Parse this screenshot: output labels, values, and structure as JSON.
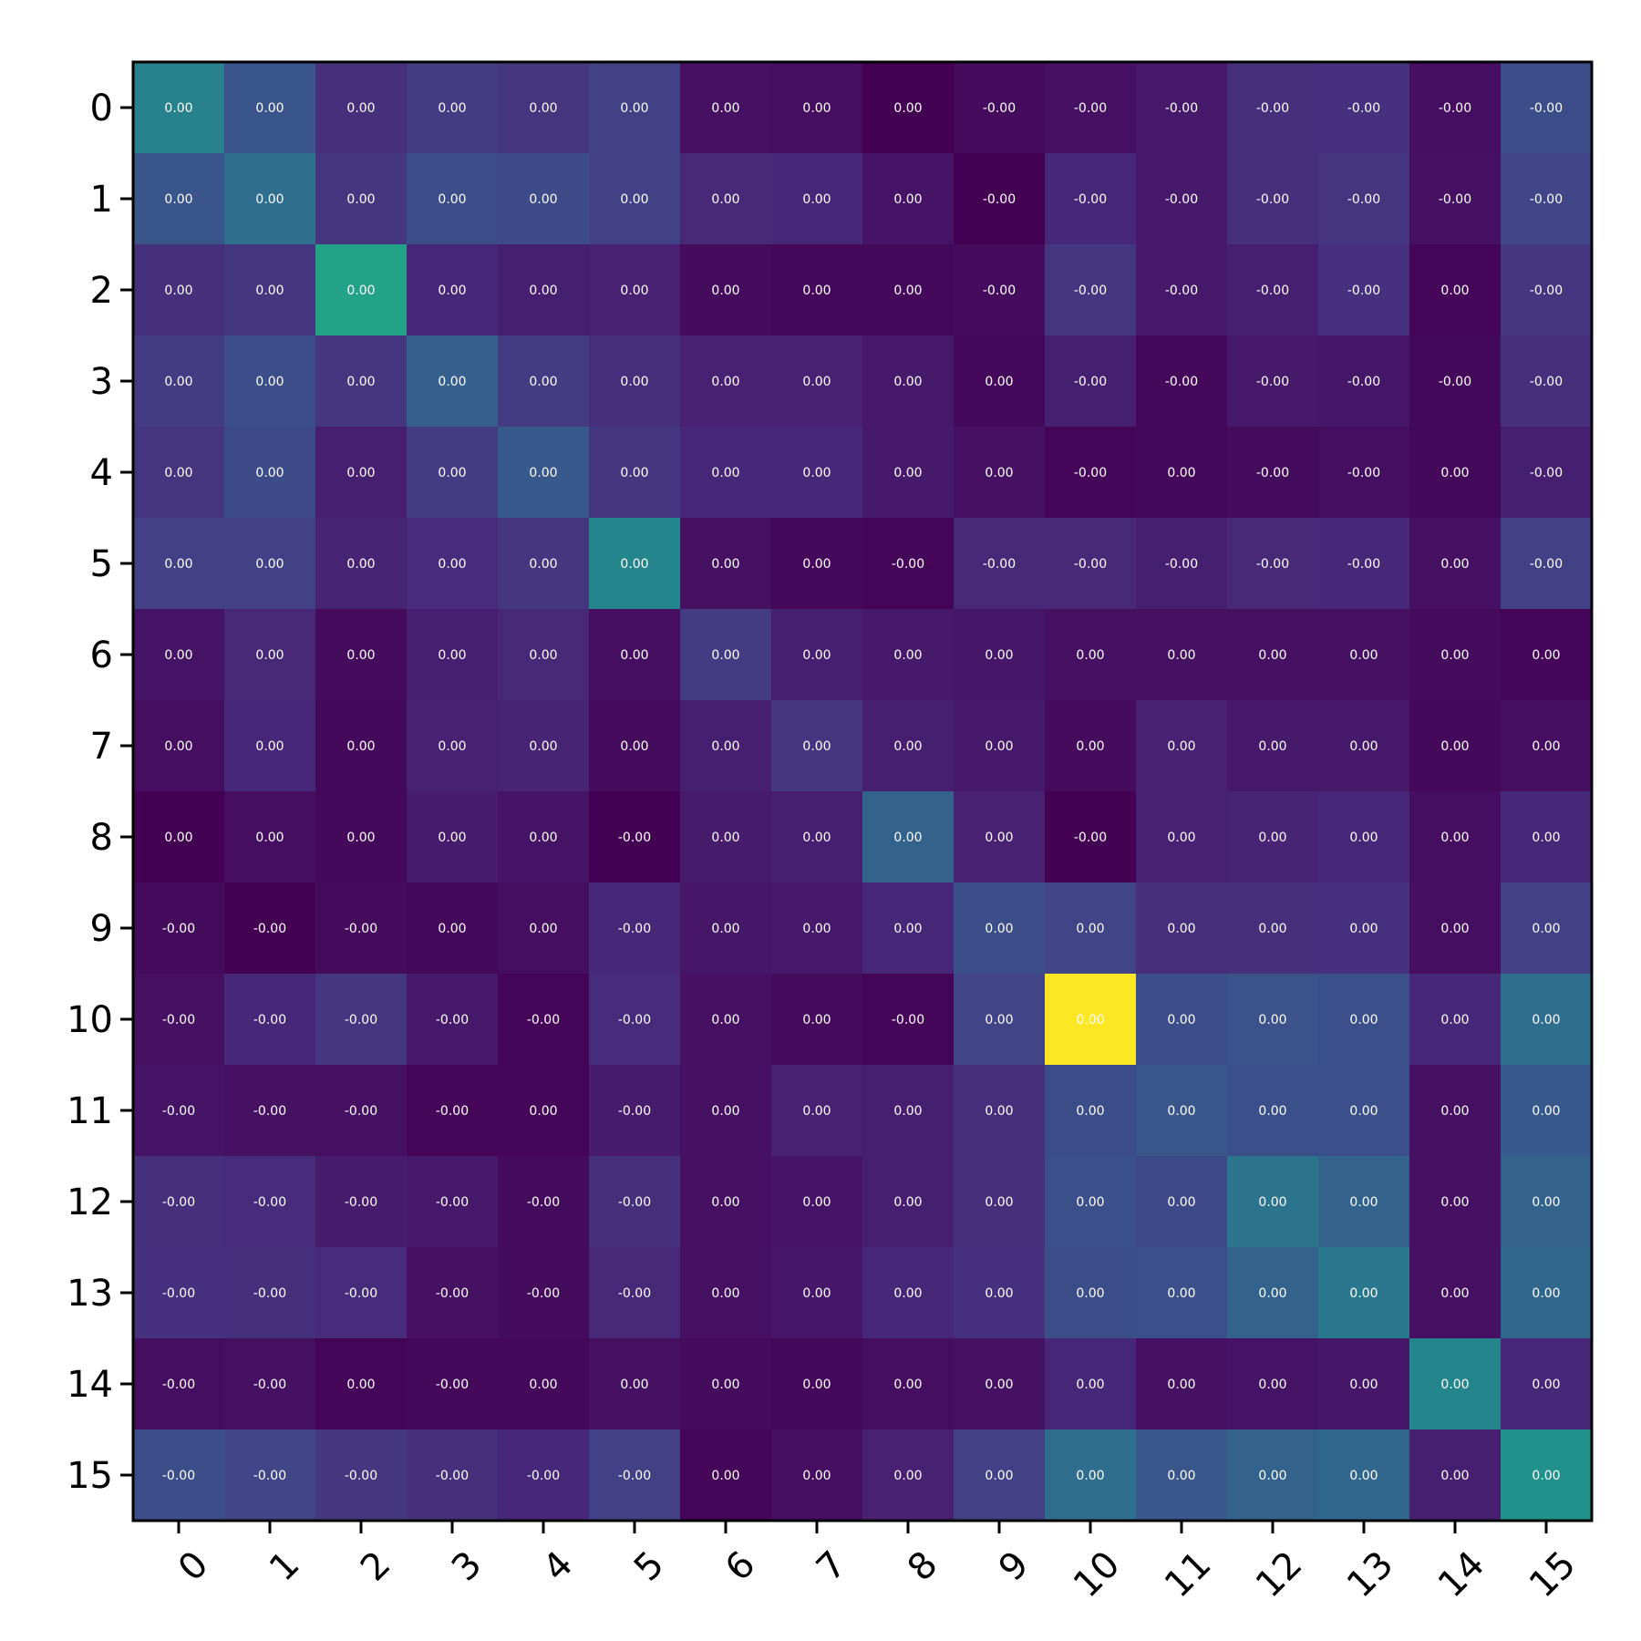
{
  "chart_data": {
    "type": "heatmap",
    "title": "",
    "xlabel": "",
    "ylabel": "",
    "colormap": "viridis",
    "x_categories": [
      "0",
      "1",
      "2",
      "3",
      "4",
      "5",
      "6",
      "7",
      "8",
      "9",
      "10",
      "11",
      "12",
      "13",
      "14",
      "15"
    ],
    "y_categories": [
      "0",
      "1",
      "2",
      "3",
      "4",
      "5",
      "6",
      "7",
      "8",
      "9",
      "10",
      "11",
      "12",
      "13",
      "14",
      "15"
    ],
    "intensity": [
      [
        0.55,
        0.33,
        0.17,
        0.22,
        0.19,
        0.24,
        0.06,
        0.05,
        0.0,
        0.04,
        0.06,
        0.09,
        0.17,
        0.18,
        0.05,
        0.3
      ],
      [
        0.33,
        0.45,
        0.2,
        0.3,
        0.29,
        0.24,
        0.15,
        0.14,
        0.07,
        0.0,
        0.14,
        0.09,
        0.17,
        0.19,
        0.06,
        0.26
      ],
      [
        0.17,
        0.2,
        0.72,
        0.14,
        0.11,
        0.12,
        0.04,
        0.03,
        0.03,
        0.04,
        0.2,
        0.09,
        0.11,
        0.18,
        0.02,
        0.2
      ],
      [
        0.22,
        0.3,
        0.2,
        0.38,
        0.22,
        0.17,
        0.12,
        0.12,
        0.09,
        0.03,
        0.11,
        0.03,
        0.09,
        0.08,
        0.03,
        0.17
      ],
      [
        0.19,
        0.29,
        0.11,
        0.22,
        0.35,
        0.2,
        0.14,
        0.14,
        0.09,
        0.06,
        0.01,
        0.03,
        0.04,
        0.05,
        0.03,
        0.11
      ],
      [
        0.24,
        0.24,
        0.13,
        0.16,
        0.2,
        0.57,
        0.06,
        0.03,
        0.01,
        0.15,
        0.15,
        0.11,
        0.15,
        0.14,
        0.06,
        0.24
      ],
      [
        0.07,
        0.15,
        0.04,
        0.11,
        0.15,
        0.05,
        0.22,
        0.11,
        0.09,
        0.08,
        0.06,
        0.06,
        0.06,
        0.06,
        0.04,
        0.02
      ],
      [
        0.05,
        0.14,
        0.03,
        0.12,
        0.13,
        0.04,
        0.11,
        0.2,
        0.11,
        0.09,
        0.04,
        0.12,
        0.09,
        0.09,
        0.03,
        0.05
      ],
      [
        0.0,
        0.05,
        0.03,
        0.1,
        0.07,
        0.0,
        0.1,
        0.11,
        0.4,
        0.12,
        0.0,
        0.12,
        0.13,
        0.14,
        0.05,
        0.14
      ],
      [
        0.04,
        0.0,
        0.04,
        0.03,
        0.05,
        0.14,
        0.08,
        0.09,
        0.14,
        0.3,
        0.25,
        0.17,
        0.17,
        0.18,
        0.05,
        0.24
      ],
      [
        0.06,
        0.14,
        0.2,
        0.09,
        0.01,
        0.16,
        0.06,
        0.04,
        0.01,
        0.25,
        1.0,
        0.3,
        0.32,
        0.31,
        0.14,
        0.45
      ],
      [
        0.07,
        0.06,
        0.06,
        0.02,
        0.02,
        0.1,
        0.06,
        0.12,
        0.11,
        0.17,
        0.3,
        0.34,
        0.31,
        0.31,
        0.06,
        0.35
      ],
      [
        0.17,
        0.16,
        0.1,
        0.09,
        0.04,
        0.17,
        0.06,
        0.07,
        0.11,
        0.17,
        0.31,
        0.28,
        0.48,
        0.4,
        0.06,
        0.4
      ],
      [
        0.18,
        0.17,
        0.16,
        0.06,
        0.04,
        0.15,
        0.06,
        0.08,
        0.14,
        0.18,
        0.3,
        0.31,
        0.4,
        0.5,
        0.06,
        0.42
      ],
      [
        0.05,
        0.06,
        0.01,
        0.03,
        0.03,
        0.06,
        0.04,
        0.03,
        0.05,
        0.06,
        0.14,
        0.06,
        0.07,
        0.08,
        0.57,
        0.14
      ],
      [
        0.3,
        0.26,
        0.2,
        0.17,
        0.14,
        0.24,
        0.01,
        0.05,
        0.12,
        0.24,
        0.45,
        0.34,
        0.4,
        0.42,
        0.11,
        0.63
      ]
    ],
    "labels": [
      [
        "0.00",
        "0.00",
        "0.00",
        "0.00",
        "0.00",
        "0.00",
        "0.00",
        "0.00",
        "0.00",
        "-0.00",
        "-0.00",
        "-0.00",
        "-0.00",
        "-0.00",
        "-0.00",
        "-0.00"
      ],
      [
        "0.00",
        "0.00",
        "0.00",
        "0.00",
        "0.00",
        "0.00",
        "0.00",
        "0.00",
        "0.00",
        "-0.00",
        "-0.00",
        "-0.00",
        "-0.00",
        "-0.00",
        "-0.00",
        "-0.00"
      ],
      [
        "0.00",
        "0.00",
        "0.00",
        "0.00",
        "0.00",
        "0.00",
        "0.00",
        "0.00",
        "0.00",
        "-0.00",
        "-0.00",
        "-0.00",
        "-0.00",
        "-0.00",
        "0.00",
        "-0.00"
      ],
      [
        "0.00",
        "0.00",
        "0.00",
        "0.00",
        "0.00",
        "0.00",
        "0.00",
        "0.00",
        "0.00",
        "0.00",
        "-0.00",
        "-0.00",
        "-0.00",
        "-0.00",
        "-0.00",
        "-0.00"
      ],
      [
        "0.00",
        "0.00",
        "0.00",
        "0.00",
        "0.00",
        "0.00",
        "0.00",
        "0.00",
        "0.00",
        "0.00",
        "-0.00",
        "0.00",
        "-0.00",
        "-0.00",
        "0.00",
        "-0.00"
      ],
      [
        "0.00",
        "0.00",
        "0.00",
        "0.00",
        "0.00",
        "0.00",
        "0.00",
        "0.00",
        "-0.00",
        "-0.00",
        "-0.00",
        "-0.00",
        "-0.00",
        "-0.00",
        "0.00",
        "-0.00"
      ],
      [
        "0.00",
        "0.00",
        "0.00",
        "0.00",
        "0.00",
        "0.00",
        "0.00",
        "0.00",
        "0.00",
        "0.00",
        "0.00",
        "0.00",
        "0.00",
        "0.00",
        "0.00",
        "0.00"
      ],
      [
        "0.00",
        "0.00",
        "0.00",
        "0.00",
        "0.00",
        "0.00",
        "0.00",
        "0.00",
        "0.00",
        "0.00",
        "0.00",
        "0.00",
        "0.00",
        "0.00",
        "0.00",
        "0.00"
      ],
      [
        "0.00",
        "0.00",
        "0.00",
        "0.00",
        "0.00",
        "-0.00",
        "0.00",
        "0.00",
        "0.00",
        "0.00",
        "-0.00",
        "0.00",
        "0.00",
        "0.00",
        "0.00",
        "0.00"
      ],
      [
        "-0.00",
        "-0.00",
        "-0.00",
        "0.00",
        "0.00",
        "-0.00",
        "0.00",
        "0.00",
        "0.00",
        "0.00",
        "0.00",
        "0.00",
        "0.00",
        "0.00",
        "0.00",
        "0.00"
      ],
      [
        "-0.00",
        "-0.00",
        "-0.00",
        "-0.00",
        "-0.00",
        "-0.00",
        "0.00",
        "0.00",
        "-0.00",
        "0.00",
        "0.00",
        "0.00",
        "0.00",
        "0.00",
        "0.00",
        "0.00"
      ],
      [
        "-0.00",
        "-0.00",
        "-0.00",
        "-0.00",
        "0.00",
        "-0.00",
        "0.00",
        "0.00",
        "0.00",
        "0.00",
        "0.00",
        "0.00",
        "0.00",
        "0.00",
        "0.00",
        "0.00"
      ],
      [
        "-0.00",
        "-0.00",
        "-0.00",
        "-0.00",
        "-0.00",
        "-0.00",
        "0.00",
        "0.00",
        "0.00",
        "0.00",
        "0.00",
        "0.00",
        "0.00",
        "0.00",
        "0.00",
        "0.00"
      ],
      [
        "-0.00",
        "-0.00",
        "-0.00",
        "-0.00",
        "-0.00",
        "-0.00",
        "0.00",
        "0.00",
        "0.00",
        "0.00",
        "0.00",
        "0.00",
        "0.00",
        "0.00",
        "0.00",
        "0.00"
      ],
      [
        "-0.00",
        "-0.00",
        "0.00",
        "-0.00",
        "0.00",
        "0.00",
        "0.00",
        "0.00",
        "0.00",
        "0.00",
        "0.00",
        "0.00",
        "0.00",
        "0.00",
        "0.00",
        "0.00"
      ],
      [
        "-0.00",
        "-0.00",
        "-0.00",
        "-0.00",
        "-0.00",
        "-0.00",
        "0.00",
        "0.00",
        "0.00",
        "0.00",
        "0.00",
        "0.00",
        "0.00",
        "0.00",
        "0.00",
        "0.00"
      ]
    ]
  }
}
